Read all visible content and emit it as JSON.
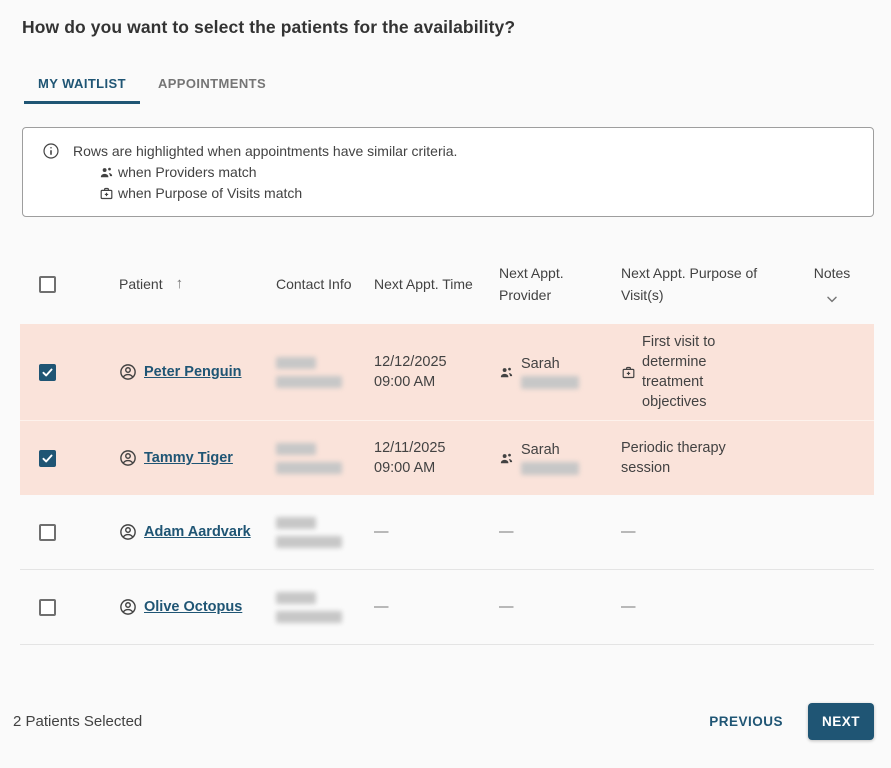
{
  "page": {
    "title": "How do you want to select the patients for the availability?"
  },
  "tabs": [
    {
      "label": "MY WAITLIST",
      "active": true
    },
    {
      "label": "APPOINTMENTS",
      "active": false
    }
  ],
  "info_box": {
    "heading": "Rows are highlighted when appointments have similar criteria.",
    "items": [
      {
        "icon": "providers-match-icon",
        "label": "when Providers match"
      },
      {
        "icon": "purpose-match-icon",
        "label": "when Purpose of Visits match"
      }
    ]
  },
  "table": {
    "header": {
      "patient": "Patient",
      "contact": "Contact Info",
      "time": "Next Appt. Time",
      "provider": "Next Appt. Provider",
      "purpose": "Next Appt. Purpose of Visit(s)",
      "notes": "Notes"
    },
    "sort_indicator": "↑",
    "sort_column": "Patient",
    "sort_direction": "ascending",
    "empty_placeholder": "—",
    "rows": [
      {
        "patient": "Peter Penguin",
        "selected": true,
        "highlighted": true,
        "contact_redacted": true,
        "next_appt_date": "12/12/2025",
        "next_appt_time": "09:00 AM",
        "provider_first_name": "Sarah",
        "provider_surname_redacted": true,
        "provider_match": true,
        "purpose": "First visit to determine treatment objectives",
        "purpose_match": true
      },
      {
        "patient": "Tammy Tiger",
        "selected": true,
        "highlighted": true,
        "contact_redacted": true,
        "next_appt_date": "12/11/2025",
        "next_appt_time": "09:00 AM",
        "provider_first_name": "Sarah",
        "provider_surname_redacted": true,
        "provider_match": true,
        "purpose": "Periodic therapy session",
        "purpose_match": false
      },
      {
        "patient": "Adam Aardvark",
        "selected": false,
        "highlighted": false,
        "contact_redacted": true,
        "next_appt_date": null,
        "next_appt_time": null,
        "provider_first_name": null,
        "provider_surname_redacted": false,
        "provider_match": false,
        "purpose": null,
        "purpose_match": false
      },
      {
        "patient": "Olive Octopus",
        "selected": false,
        "highlighted": false,
        "contact_redacted": true,
        "next_appt_date": null,
        "next_appt_time": null,
        "provider_first_name": null,
        "provider_surname_redacted": false,
        "provider_match": false,
        "purpose": null,
        "purpose_match": false
      }
    ]
  },
  "footer": {
    "selected_count": "2 Patients Selected",
    "previous_label": "PREVIOUS",
    "next_label": "NEXT"
  },
  "colors": {
    "accent": "#1F5574",
    "row_highlight": "#FAE3DA",
    "inactive_tab": "#757575",
    "text": "#424242"
  }
}
